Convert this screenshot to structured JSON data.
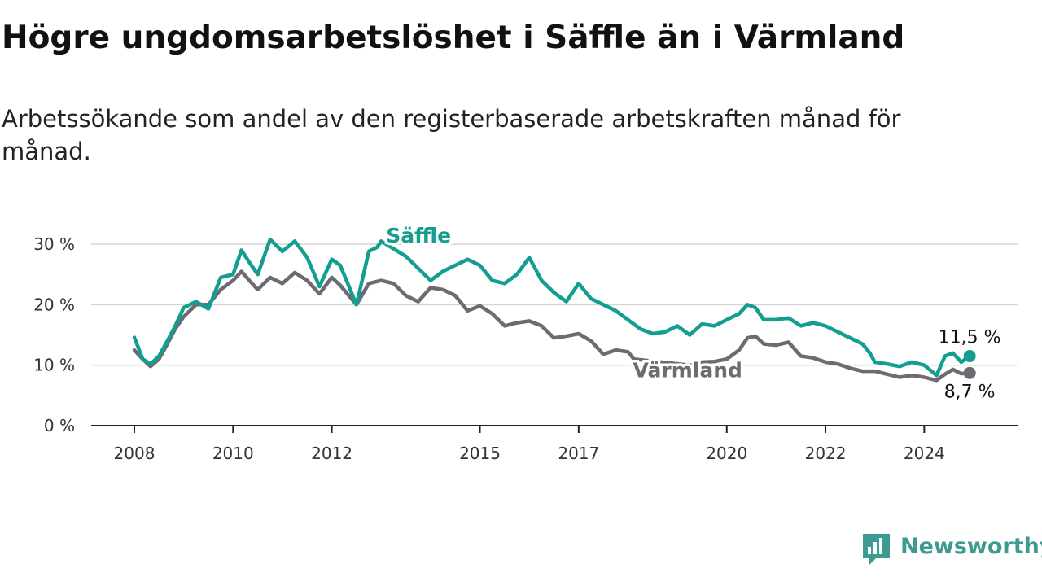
{
  "chart_data": {
    "type": "line",
    "title": "Högre ungdomsarbetslöshet i Säffle än i Värmland",
    "subtitle": "Arbetssökande som andel av den registerbaserade arbetskraften månad för månad.",
    "xlabel": "",
    "ylabel": "",
    "ylim": [
      0,
      32
    ],
    "xlim": [
      2008.0,
      2025.0
    ],
    "y_ticks": [
      0,
      10,
      20,
      30
    ],
    "y_tick_labels": [
      "0 %",
      "10 %",
      "20 %",
      "30 %"
    ],
    "x_ticks": [
      2008,
      2010,
      2012,
      2015,
      2017,
      2020,
      2022,
      2024
    ],
    "x_tick_labels": [
      "2008",
      "2010",
      "2012",
      "2015",
      "2017",
      "2020",
      "2022",
      "2024"
    ],
    "grid": true,
    "legend": "inline labels",
    "series": [
      {
        "name": "Säffle",
        "color": "#139e8f",
        "end_label": "11,5 %",
        "points": [
          [
            2008.0,
            14.6
          ],
          [
            2008.17,
            11.0
          ],
          [
            2008.33,
            10.2
          ],
          [
            2008.5,
            11.5
          ],
          [
            2008.67,
            14.0
          ],
          [
            2008.83,
            16.5
          ],
          [
            2009.0,
            19.5
          ],
          [
            2009.25,
            20.5
          ],
          [
            2009.5,
            19.3
          ],
          [
            2009.75,
            24.5
          ],
          [
            2010.0,
            25.0
          ],
          [
            2010.17,
            29.0
          ],
          [
            2010.33,
            27.0
          ],
          [
            2010.5,
            25.0
          ],
          [
            2010.75,
            30.8
          ],
          [
            2011.0,
            28.8
          ],
          [
            2011.25,
            30.5
          ],
          [
            2011.5,
            27.8
          ],
          [
            2011.75,
            23.0
          ],
          [
            2012.0,
            27.5
          ],
          [
            2012.17,
            26.5
          ],
          [
            2012.5,
            20.0
          ],
          [
            2012.75,
            28.8
          ],
          [
            2012.92,
            29.5
          ],
          [
            2013.0,
            30.5
          ],
          [
            2013.5,
            28.0
          ],
          [
            2013.75,
            26.0
          ],
          [
            2014.0,
            24.0
          ],
          [
            2014.25,
            25.5
          ],
          [
            2014.5,
            26.5
          ],
          [
            2014.75,
            27.5
          ],
          [
            2015.0,
            26.5
          ],
          [
            2015.25,
            24.0
          ],
          [
            2015.5,
            23.5
          ],
          [
            2015.75,
            25.0
          ],
          [
            2016.0,
            27.8
          ],
          [
            2016.25,
            24.0
          ],
          [
            2016.5,
            22.0
          ],
          [
            2016.75,
            20.5
          ],
          [
            2017.0,
            23.5
          ],
          [
            2017.25,
            21.0
          ],
          [
            2017.5,
            20.0
          ],
          [
            2017.75,
            19.0
          ],
          [
            2018.0,
            17.5
          ],
          [
            2018.25,
            16.0
          ],
          [
            2018.5,
            15.2
          ],
          [
            2018.75,
            15.5
          ],
          [
            2019.0,
            16.5
          ],
          [
            2019.25,
            15.0
          ],
          [
            2019.5,
            16.8
          ],
          [
            2019.75,
            16.5
          ],
          [
            2020.0,
            17.5
          ],
          [
            2020.25,
            18.5
          ],
          [
            2020.42,
            20.0
          ],
          [
            2020.58,
            19.5
          ],
          [
            2020.75,
            17.5
          ],
          [
            2021.0,
            17.5
          ],
          [
            2021.25,
            17.8
          ],
          [
            2021.5,
            16.5
          ],
          [
            2021.75,
            17.0
          ],
          [
            2022.0,
            16.5
          ],
          [
            2022.25,
            15.5
          ],
          [
            2022.5,
            14.5
          ],
          [
            2022.75,
            13.5
          ],
          [
            2022.9,
            12.0
          ],
          [
            2023.0,
            10.5
          ],
          [
            2023.25,
            10.2
          ],
          [
            2023.5,
            9.8
          ],
          [
            2023.75,
            10.5
          ],
          [
            2024.0,
            10.0
          ],
          [
            2024.25,
            8.3
          ],
          [
            2024.42,
            11.5
          ],
          [
            2024.58,
            12.0
          ],
          [
            2024.75,
            10.5
          ],
          [
            2024.92,
            11.5
          ]
        ]
      },
      {
        "name": "Värmland",
        "color": "#6d6b71",
        "end_label": "8,7 %",
        "points": [
          [
            2008.0,
            12.5
          ],
          [
            2008.17,
            11.0
          ],
          [
            2008.33,
            9.8
          ],
          [
            2008.5,
            11.0
          ],
          [
            2008.67,
            13.5
          ],
          [
            2008.83,
            16.0
          ],
          [
            2009.0,
            18.0
          ],
          [
            2009.25,
            20.0
          ],
          [
            2009.5,
            20.0
          ],
          [
            2009.75,
            22.5
          ],
          [
            2010.0,
            24.0
          ],
          [
            2010.17,
            25.5
          ],
          [
            2010.33,
            24.0
          ],
          [
            2010.5,
            22.5
          ],
          [
            2010.75,
            24.5
          ],
          [
            2011.0,
            23.5
          ],
          [
            2011.25,
            25.3
          ],
          [
            2011.5,
            24.0
          ],
          [
            2011.75,
            21.8
          ],
          [
            2012.0,
            24.5
          ],
          [
            2012.17,
            23.2
          ],
          [
            2012.5,
            20.0
          ],
          [
            2012.75,
            23.5
          ],
          [
            2013.0,
            24.0
          ],
          [
            2013.25,
            23.5
          ],
          [
            2013.5,
            21.5
          ],
          [
            2013.75,
            20.5
          ],
          [
            2014.0,
            22.8
          ],
          [
            2014.25,
            22.5
          ],
          [
            2014.5,
            21.5
          ],
          [
            2014.75,
            19.0
          ],
          [
            2015.0,
            19.8
          ],
          [
            2015.25,
            18.5
          ],
          [
            2015.5,
            16.5
          ],
          [
            2015.75,
            17.0
          ],
          [
            2016.0,
            17.3
          ],
          [
            2016.25,
            16.5
          ],
          [
            2016.5,
            14.5
          ],
          [
            2016.75,
            14.8
          ],
          [
            2017.0,
            15.2
          ],
          [
            2017.25,
            14.0
          ],
          [
            2017.5,
            11.8
          ],
          [
            2017.75,
            12.5
          ],
          [
            2018.0,
            12.2
          ],
          [
            2018.12,
            11.0
          ],
          [
            2019.25,
            10.0
          ],
          [
            2019.5,
            10.5
          ],
          [
            2019.75,
            10.6
          ],
          [
            2020.0,
            11.0
          ],
          [
            2020.25,
            12.5
          ],
          [
            2020.42,
            14.5
          ],
          [
            2020.58,
            14.8
          ],
          [
            2020.75,
            13.5
          ],
          [
            2021.0,
            13.3
          ],
          [
            2021.25,
            13.8
          ],
          [
            2021.5,
            11.5
          ],
          [
            2021.75,
            11.2
          ],
          [
            2022.0,
            10.5
          ],
          [
            2022.25,
            10.2
          ],
          [
            2022.5,
            9.5
          ],
          [
            2022.75,
            9.0
          ],
          [
            2023.0,
            9.0
          ],
          [
            2023.25,
            8.5
          ],
          [
            2023.5,
            8.0
          ],
          [
            2023.75,
            8.3
          ],
          [
            2024.0,
            8.0
          ],
          [
            2024.25,
            7.5
          ],
          [
            2024.42,
            8.5
          ],
          [
            2024.58,
            9.3
          ],
          [
            2024.75,
            8.6
          ],
          [
            2024.92,
            8.7
          ]
        ]
      }
    ]
  },
  "brand": {
    "name": "Newsworthy",
    "icon": "newsworthy-logo-icon",
    "color": "#3d9b91"
  }
}
